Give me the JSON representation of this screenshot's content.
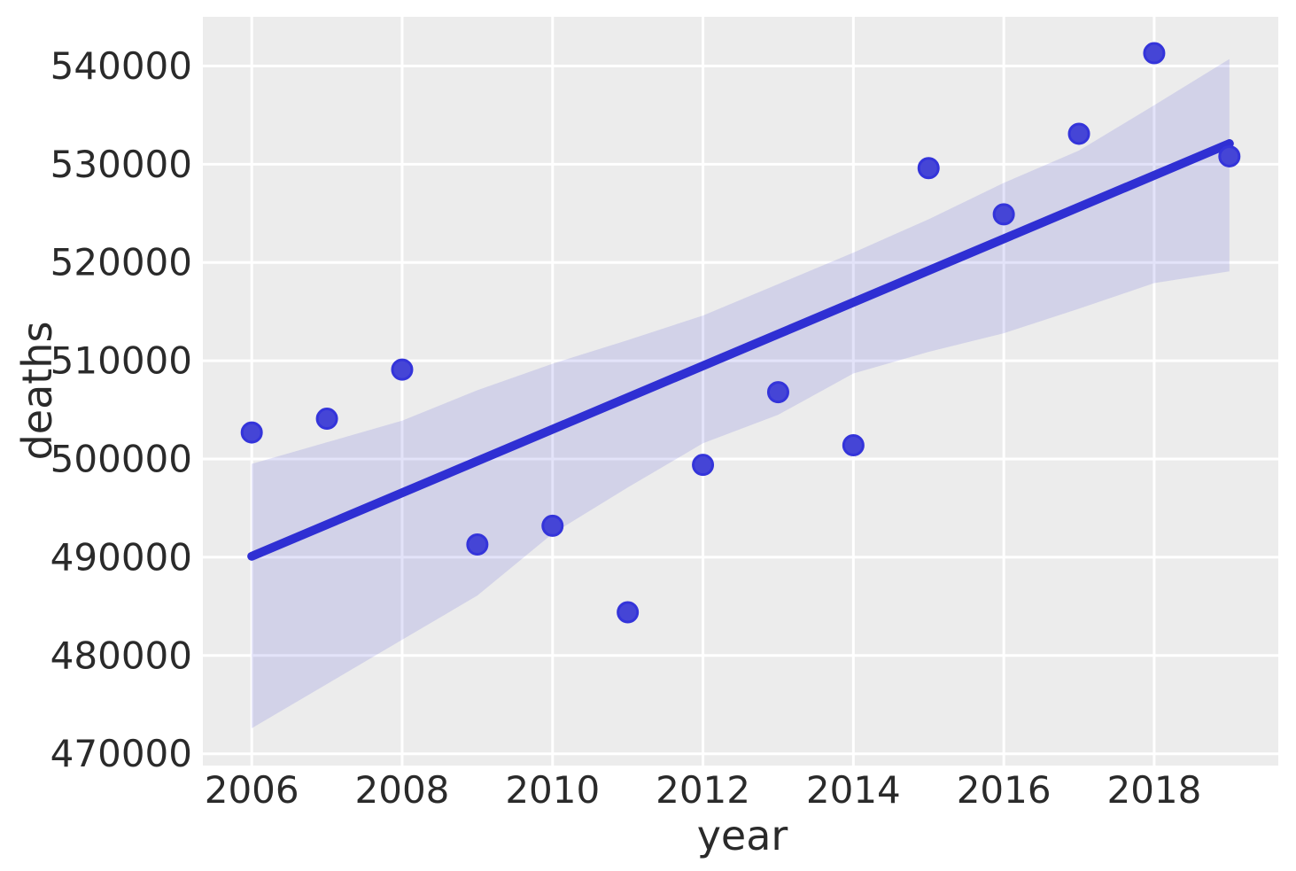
{
  "chart_data": {
    "type": "scatter",
    "title": "",
    "xlabel": "year",
    "ylabel": "deaths",
    "x": [
      2006,
      2007,
      2008,
      2009,
      2010,
      2011,
      2012,
      2013,
      2014,
      2015,
      2016,
      2017,
      2018,
      2019
    ],
    "series": [
      {
        "name": "deaths",
        "values": [
          502700,
          504100,
          509100,
          491300,
          493200,
          484400,
          499400,
          506800,
          501400,
          529600,
          524900,
          533100,
          541300,
          530800
        ]
      }
    ],
    "regression_line": {
      "x": [
        2006,
        2019
      ],
      "y": [
        490100,
        532100
      ]
    },
    "ci_band": {
      "x": [
        2006,
        2007,
        2008,
        2009,
        2010,
        2011,
        2012,
        2013,
        2014,
        2015,
        2016,
        2017,
        2018,
        2019
      ],
      "upper": [
        499500,
        501700,
        503900,
        507000,
        509700,
        512100,
        514600,
        517800,
        521000,
        524400,
        528100,
        531400,
        536000,
        540700
      ],
      "lower": [
        472600,
        477100,
        481600,
        486100,
        492400,
        497100,
        501600,
        504500,
        508700,
        510900,
        512800,
        515300,
        517900,
        519100
      ]
    },
    "xticks": [
      2006,
      2008,
      2010,
      2012,
      2014,
      2016,
      2018
    ],
    "yticks": [
      470000,
      480000,
      490000,
      500000,
      510000,
      520000,
      530000,
      540000
    ],
    "xlim": [
      2005.35,
      2019.65
    ],
    "ylim": [
      468800,
      545000
    ],
    "grid": true,
    "legend": false,
    "colors": {
      "figure_bg": "#ffffff",
      "plot_bg": "#ececec",
      "grid": "#ffffff",
      "band": "#4646d8",
      "band_opacity": 0.15,
      "line": "#2f2fd3",
      "point_fill": "#4545d6",
      "point_edge": "#3434da",
      "text": "#2a2a2a"
    }
  }
}
